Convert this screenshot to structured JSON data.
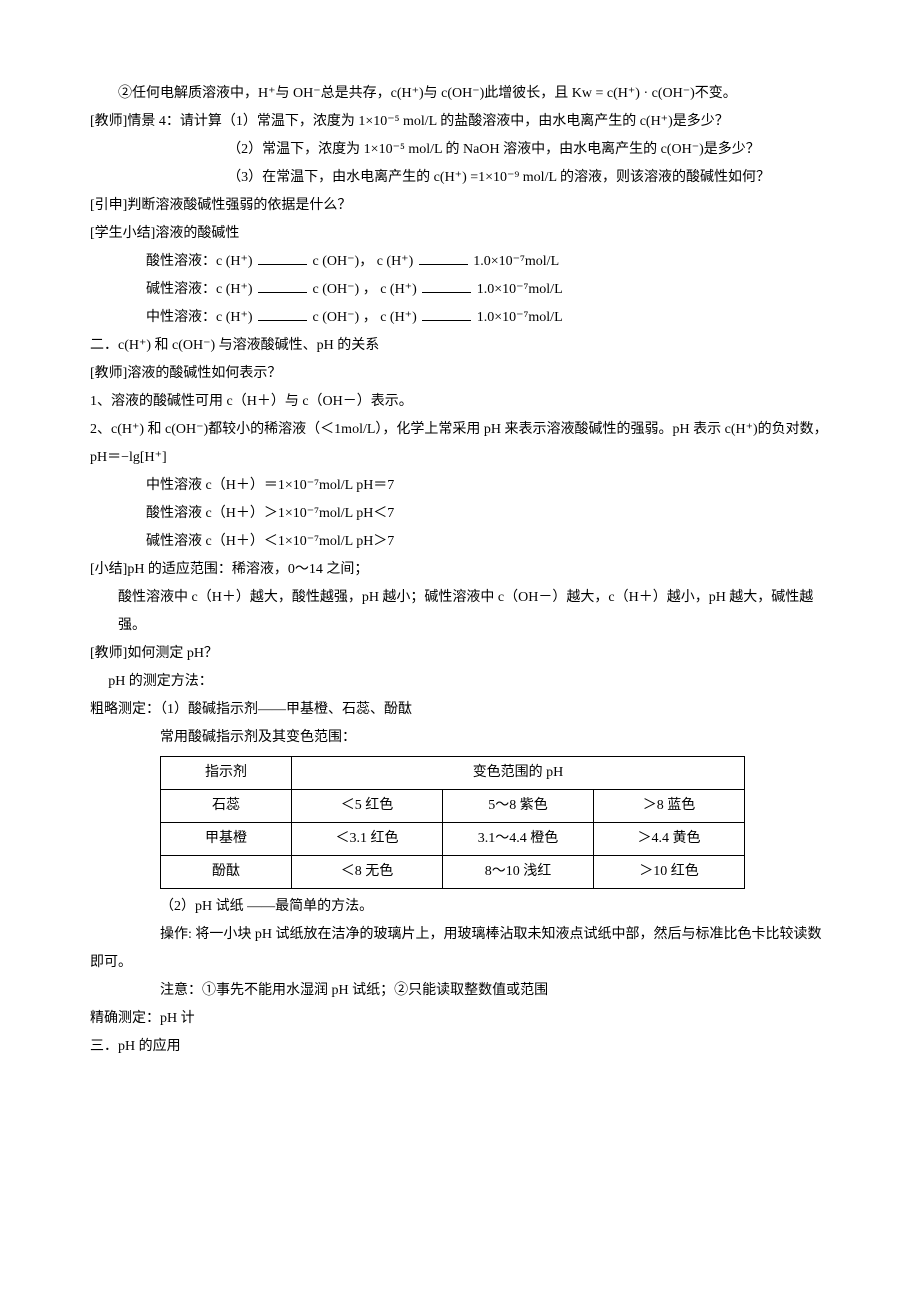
{
  "p1": "②任何电解质溶液中，H⁺与 OH⁻总是共存，c(H⁺)与 c(OH⁻)此增彼长，且 Kw = c(H⁺) · c(OH⁻)不变。",
  "p2": "[教师]情景 4：请计算（1）常温下，浓度为 1×10⁻⁵ mol/L 的盐酸溶液中，由水电离产生的 c(H⁺)是多少？",
  "p3": "（2）常温下，浓度为 1×10⁻⁵ mol/L 的 NaOH 溶液中，由水电离产生的 c(OH⁻)是多少？",
  "p4": "（3）在常温下，由水电离产生的 c(H⁺) =1×10⁻⁹ mol/L 的溶液，则该溶液的酸碱性如何？",
  "p5": "[引申]判断溶液酸碱性强弱的依据是什么？",
  "p6": "[学生小结]溶液的酸碱性",
  "row_acid_a": "酸性溶液：c (H⁺) ",
  "row_acid_b": " c (OH⁻)，  c (H⁺) ",
  "row_acid_c": " 1.0×10⁻⁷mol/L",
  "row_base_a": "碱性溶液：c (H⁺) ",
  "row_base_b": " c (OH⁻)  ， c (H⁺) ",
  "row_base_c": " 1.0×10⁻⁷mol/L",
  "row_neut_a": "中性溶液：c (H⁺) ",
  "row_neut_b": " c (OH⁻)  ， c (H⁺) ",
  "row_neut_c": " 1.0×10⁻⁷mol/L",
  "h2": "二．c(H⁺) 和 c(OH⁻) 与溶液酸碱性、pH 的关系",
  "p7": "[教师]溶液的酸碱性如何表示？",
  "p8": "1、溶液的酸碱性可用 c（H＋）与 c（OH－）表示。",
  "p9": "2、c(H⁺) 和 c(OH⁻)都较小的稀溶液（＜1mol/L），化学上常采用 pH 来表示溶液酸碱性的强弱。pH 表示 c(H⁺)的负对数，pH＝−lg[H⁺]",
  "p10": "中性溶液 c（H＋）＝1×10⁻⁷mol/L   pH＝7",
  "p11": "酸性溶液 c（H＋）＞1×10⁻⁷mol/L   pH＜7",
  "p12": "碱性溶液 c（H＋）＜1×10⁻⁷mol/L   pH＞7",
  "p13": "[小结]pH 的适应范围：稀溶液，0～14 之间；",
  "p14": "酸性溶液中 c（H＋）越大，酸性越强，pH 越小；碱性溶液中 c（OH－）越大，c（H＋）越小，pH 越大，碱性越强。",
  "p15": "[教师]如何测定 pH？",
  "p16": "pH 的测定方法：",
  "p17": "粗略测定：（1）酸碱指示剂——甲基橙、石蕊、酚酞",
  "p18": "常用酸碱指示剂及其变色范围：",
  "table": {
    "headers": [
      "指示剂",
      "变色范围的 pH"
    ],
    "col_widths": [
      "110px",
      "130px",
      "130px",
      "130px"
    ],
    "rows": [
      [
        "石蕊",
        "＜5 红色",
        "5～8 紫色",
        "＞8 蓝色"
      ],
      [
        "甲基橙",
        "＜3.1 红色",
        "3.1～4.4 橙色",
        "＞4.4 黄色"
      ],
      [
        "酚酞",
        "＜8 无色",
        "8～10 浅红",
        "＞10 红色"
      ]
    ]
  },
  "p19": "（2）pH 试纸 ——最简单的方法。",
  "p20": "操作: 将一小块 pH 试纸放在洁净的玻璃片上，用玻璃棒沾取未知液点试纸中部，然后与标准比色卡比较读数即可。",
  "p21": "注意：①事先不能用水湿润 pH 试纸；②只能读取整数值或范围",
  "p22": "精确测定：pH 计",
  "h3": "三．pH 的应用"
}
